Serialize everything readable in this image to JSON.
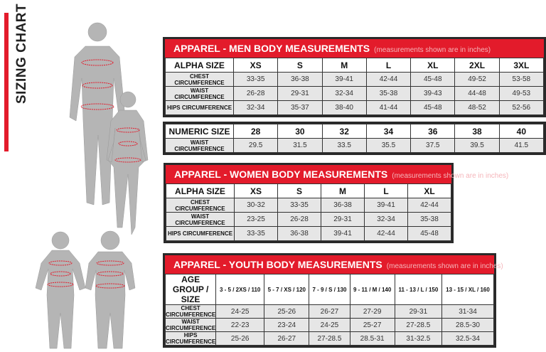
{
  "title": "SIZING CHART",
  "men": {
    "title": "APPAREL - MEN BODY MEASUREMENTS",
    "note": "(measurements shown are in inches)",
    "header": [
      "ALPHA SIZE",
      "XS",
      "S",
      "M",
      "L",
      "XL",
      "2XL",
      "3XL"
    ],
    "rows": [
      [
        "CHEST CIRCUMFERENCE",
        "33-35",
        "36-38",
        "39-41",
        "42-44",
        "45-48",
        "49-52",
        "53-58"
      ],
      [
        "WAIST CIRCUMFERENCE",
        "26-28",
        "29-31",
        "32-34",
        "35-38",
        "39-43",
        "44-48",
        "49-53"
      ],
      [
        "HIPS CIRCUMFERENCE",
        "32-34",
        "35-37",
        "38-40",
        "41-44",
        "45-48",
        "48-52",
        "52-56"
      ]
    ]
  },
  "numeric": {
    "header": [
      "NUMERIC SIZE",
      "28",
      "30",
      "32",
      "34",
      "36",
      "38",
      "40"
    ],
    "rows": [
      [
        "WAIST CIRCUMFERENCE",
        "29.5",
        "31.5",
        "33.5",
        "35.5",
        "37.5",
        "39.5",
        "41.5"
      ]
    ]
  },
  "women": {
    "title": "APPAREL - WOMEN BODY MEASUREMENTS",
    "note": "(measurements shown are in inches)",
    "header": [
      "ALPHA SIZE",
      "XS",
      "S",
      "M",
      "L",
      "XL"
    ],
    "rows": [
      [
        "CHEST CIRCUMFERENCE",
        "30-32",
        "33-35",
        "36-38",
        "39-41",
        "42-44"
      ],
      [
        "WAIST CIRCUMFERENCE",
        "23-25",
        "26-28",
        "29-31",
        "32-34",
        "35-38"
      ],
      [
        "HIPS CIRCUMFERENCE",
        "33-35",
        "36-38",
        "39-41",
        "42-44",
        "45-48"
      ]
    ]
  },
  "youth": {
    "title": "APPAREL - YOUTH BODY MEASUREMENTS",
    "note": "(measurements shown are in inches)",
    "header": [
      "AGE GROUP / SIZE",
      "3 - 5 / 2XS / 110",
      "5 - 7 / XS / 120",
      "7 - 9 / S / 130",
      "9 - 11 / M / 140",
      "11 - 13 / L / 150",
      "13 - 15 / XL / 160"
    ],
    "rows": [
      [
        "CHEST CIRCUMFERENCE",
        "24-25",
        "25-26",
        "26-27",
        "27-29",
        "29-31",
        "31-34"
      ],
      [
        "WAIST CIRCUMFERENCE",
        "22-23",
        "23-24",
        "24-25",
        "25-27",
        "27-28.5",
        "28.5-30"
      ],
      [
        "HIPS CIRCUMFERENCE",
        "25-26",
        "26-27",
        "27-28.5",
        "28.5-31",
        "31-32.5",
        "32.5-34"
      ]
    ]
  },
  "colors": {
    "accent": "#e31b2b",
    "row_bg": "#e6e6e6",
    "figure": "#b5b5b5"
  }
}
